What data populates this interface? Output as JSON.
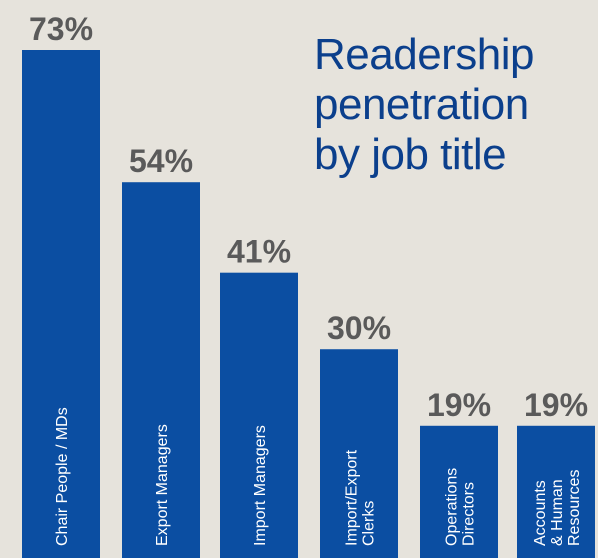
{
  "chart_data": {
    "type": "bar",
    "title_lines": [
      "Readership",
      "penetration",
      "by job title"
    ],
    "categories": [
      [
        "Chair People / MDs"
      ],
      [
        "Export Managers"
      ],
      [
        "Import Managers"
      ],
      [
        "Import/Export",
        "Clerks"
      ],
      [
        "Operations",
        "Directors"
      ],
      [
        "Accounts",
        "& Human",
        "Resources"
      ]
    ],
    "values": [
      73,
      54,
      41,
      30,
      19,
      19
    ],
    "value_labels": [
      "73%",
      "54%",
      "41%",
      "30%",
      "19%",
      "19%"
    ],
    "ylim": [
      0,
      73
    ],
    "grid": false,
    "legend": "none",
    "colors": {
      "background": "#e6e3dc",
      "bar": "#0b4ea2",
      "bar_label_text": "#ffffff",
      "value_text": "#5a5a5a",
      "title": "#0b3f8c"
    }
  }
}
